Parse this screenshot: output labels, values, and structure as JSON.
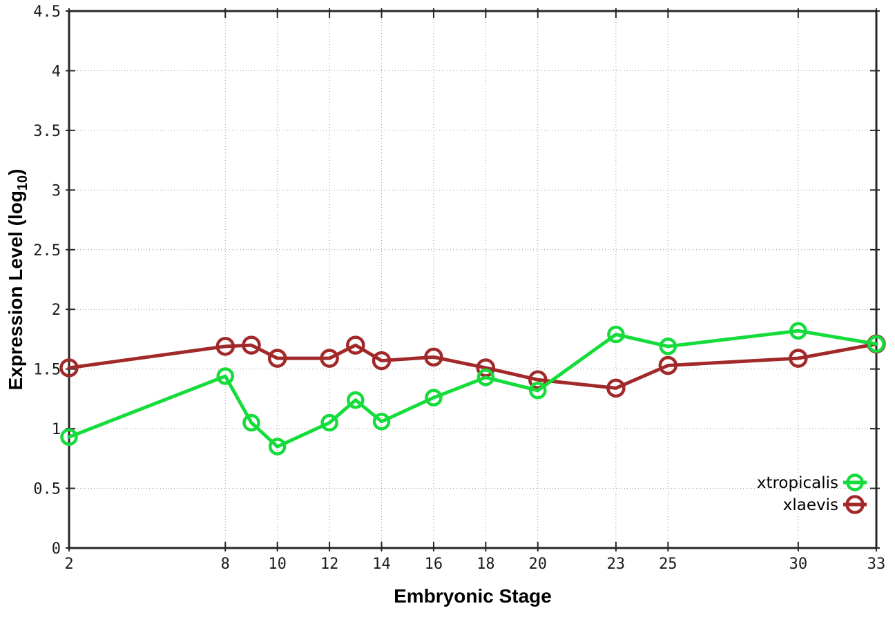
{
  "chart_data": {
    "type": "line",
    "title": "",
    "xlabel": "Embryonic Stage",
    "ylabel": {
      "text": "Expression Level (log",
      "subscript": "10",
      "suffix": ")"
    },
    "xlim": [
      2,
      33
    ],
    "ylim": [
      0,
      4.5
    ],
    "xticks": [
      2,
      8,
      10,
      12,
      14,
      16,
      18,
      20,
      23,
      25,
      30,
      33
    ],
    "yticks": [
      0,
      0.5,
      1,
      1.5,
      2,
      2.5,
      3,
      3.5,
      4,
      4.5
    ],
    "grid": true,
    "grid_style": "dotted",
    "legend_position": "bottom-right-inside",
    "x": [
      2,
      8,
      9,
      10,
      12,
      13,
      14,
      16,
      18,
      20,
      23,
      25,
      30,
      33
    ],
    "series": [
      {
        "name": "xtropicalis",
        "color": "#14dc3a",
        "marker": "open-circle",
        "marker_radius": 10.5,
        "values": [
          0.93,
          1.44,
          1.05,
          0.85,
          1.05,
          1.24,
          1.06,
          1.26,
          1.43,
          1.32,
          1.79,
          1.69,
          1.82,
          1.71
        ]
      },
      {
        "name": "xlaevis",
        "color": "#a22929",
        "marker": "open-circle",
        "marker_radius": 11.5,
        "values": [
          1.51,
          1.69,
          1.7,
          1.59,
          1.59,
          1.7,
          1.57,
          1.6,
          1.51,
          1.41,
          1.34,
          1.53,
          1.59,
          1.71
        ]
      }
    ],
    "colors": {
      "grid": "#9a9a9a",
      "axis": "#262626",
      "tick_label": "#1a1a1a",
      "label": "#000000"
    }
  }
}
